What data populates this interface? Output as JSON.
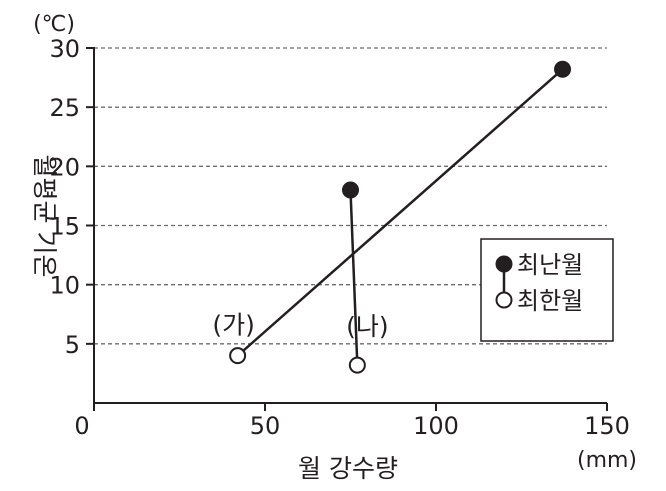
{
  "chart_data": {
    "type": "scatter",
    "title": "",
    "xlabel": "월 강수량",
    "ylabel": "월평균 기온",
    "x_unit": "(mm)",
    "y_unit": "(℃)",
    "xlim": [
      0,
      150
    ],
    "ylim": [
      0,
      30
    ],
    "x_ticks": [
      0,
      50,
      100,
      150
    ],
    "y_ticks": [
      5,
      10,
      15,
      20,
      25,
      30
    ],
    "y_gridlines": [
      5,
      10,
      15,
      20,
      25,
      30
    ],
    "grid_style": "dashed horizontal",
    "legend_position": "right",
    "legend": [
      {
        "label": "최난월",
        "marker": "filled-circle"
      },
      {
        "label": "최한월",
        "marker": "open-circle"
      }
    ],
    "series": [
      {
        "name": "(가)",
        "warmest_month": {
          "x": 137,
          "y": 28.2
        },
        "coldest_month": {
          "x": 42,
          "y": 4
        }
      },
      {
        "name": "(나)",
        "warmest_month": {
          "x": 75,
          "y": 18
        },
        "coldest_month": {
          "x": 77,
          "y": 3.2
        }
      }
    ],
    "colors": {
      "ink": "#231f20",
      "grid": "#6d6d6d"
    }
  }
}
